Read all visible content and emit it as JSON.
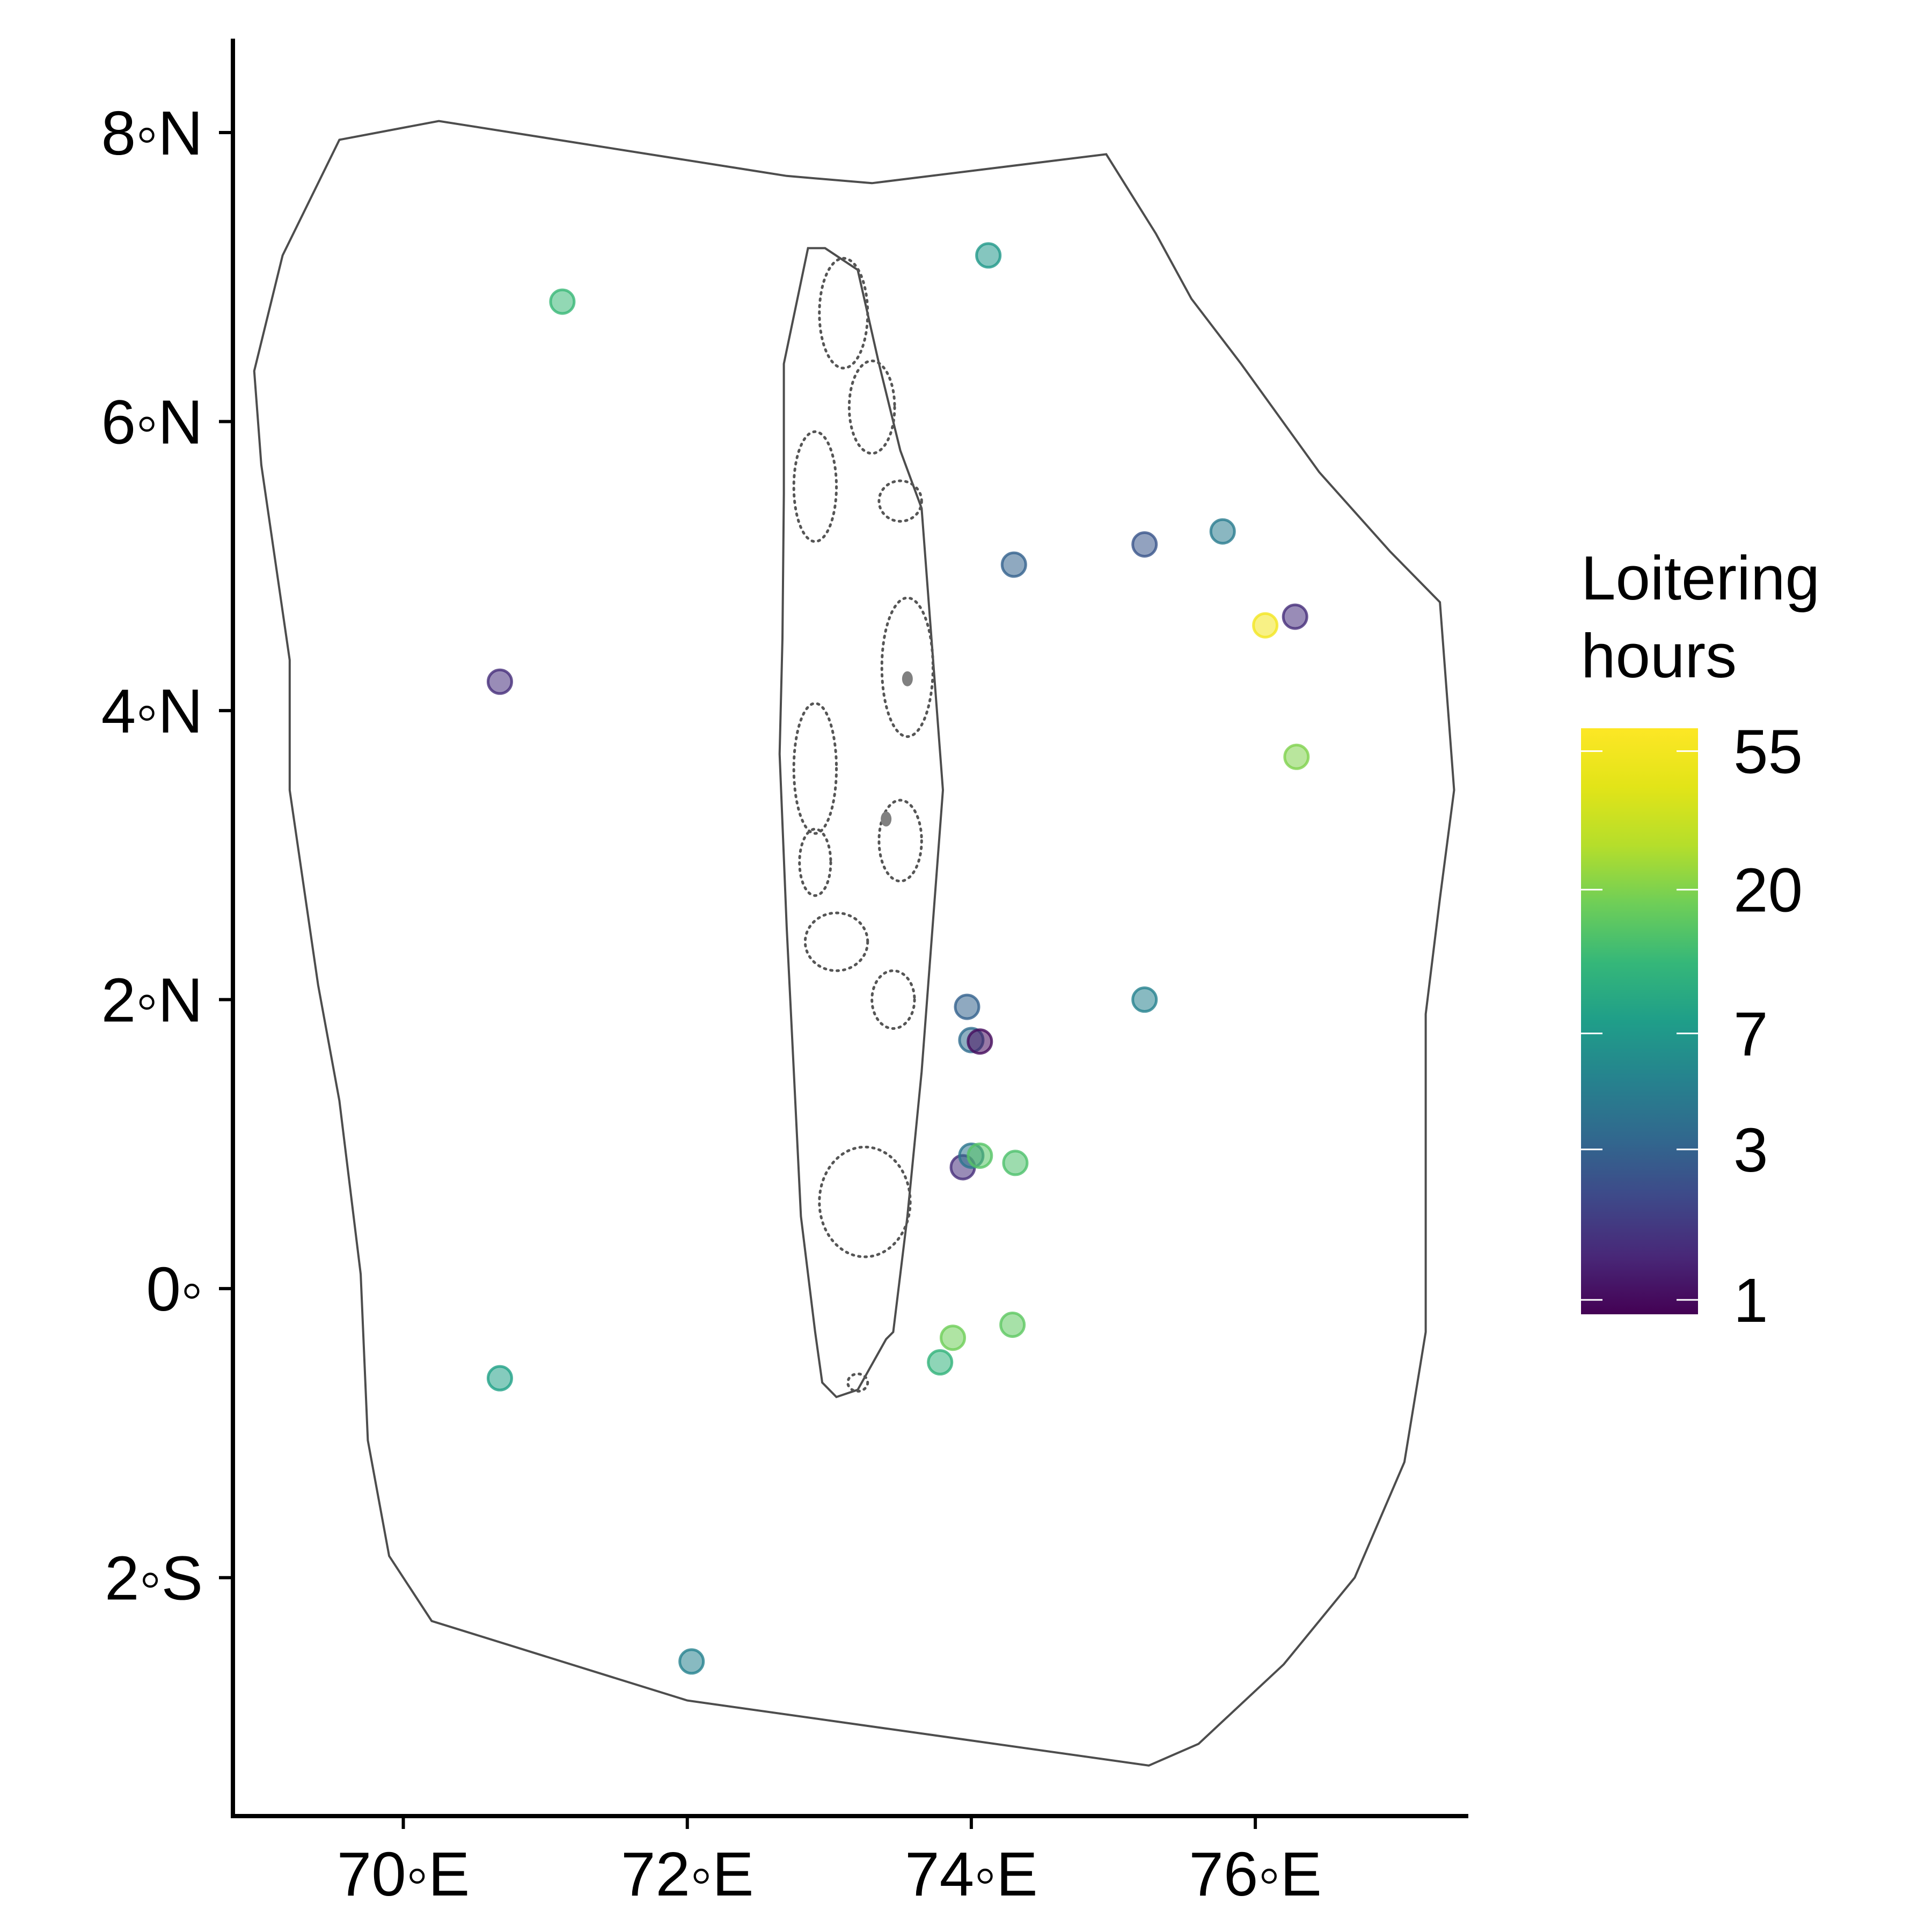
{
  "chart_data": {
    "type": "scatter",
    "title": "",
    "xlabel": "",
    "ylabel": "",
    "xlim": [
      68.8,
      77.5
    ],
    "ylim": [
      -3.65,
      8.65
    ],
    "x_ticks": [
      {
        "value": 70,
        "label": "70◦E"
      },
      {
        "value": 72,
        "label": "72◦E"
      },
      {
        "value": 74,
        "label": "74◦E"
      },
      {
        "value": 76,
        "label": "76◦E"
      }
    ],
    "y_ticks": [
      {
        "value": 8,
        "label": "8◦N"
      },
      {
        "value": 6,
        "label": "6◦N"
      },
      {
        "value": 4,
        "label": "4◦N"
      },
      {
        "value": 2,
        "label": "2◦N"
      },
      {
        "value": 0,
        "label": "0◦"
      },
      {
        "value": -2,
        "label": "2◦S"
      }
    ],
    "grid": false,
    "legend": {
      "title_lines": [
        "Loitering",
        "hours"
      ],
      "position": "right",
      "scale": "log",
      "range": [
        0.9,
        65
      ],
      "ticks": [
        {
          "value": 55,
          "label": "55"
        },
        {
          "value": 20,
          "label": "20"
        },
        {
          "value": 7,
          "label": "7"
        },
        {
          "value": 3,
          "label": "3"
        },
        {
          "value": 1,
          "label": "1"
        }
      ],
      "colormap": "viridis"
    },
    "boundary_outer": [
      [
        69.55,
        7.95
      ],
      [
        70.25,
        8.08
      ],
      [
        72.7,
        7.7
      ],
      [
        73.3,
        7.65
      ],
      [
        74.95,
        7.85
      ],
      [
        75.3,
        7.3
      ],
      [
        75.55,
        6.85
      ],
      [
        75.9,
        6.4
      ],
      [
        76.45,
        5.65
      ],
      [
        76.95,
        5.1
      ],
      [
        77.3,
        4.75
      ],
      [
        77.35,
        4.1
      ],
      [
        77.4,
        3.45
      ],
      [
        77.3,
        2.7
      ],
      [
        77.2,
        1.9
      ],
      [
        77.2,
        1.0
      ],
      [
        77.2,
        -0.3
      ],
      [
        77.15,
        -0.6
      ],
      [
        77.05,
        -1.2
      ],
      [
        76.7,
        -2.0
      ],
      [
        76.2,
        -2.6
      ],
      [
        75.6,
        -3.15
      ],
      [
        75.25,
        -3.3
      ],
      [
        72.0,
        -2.85
      ],
      [
        70.2,
        -2.3
      ],
      [
        69.9,
        -1.85
      ],
      [
        69.75,
        -1.05
      ],
      [
        69.7,
        0.1
      ],
      [
        69.55,
        1.3
      ],
      [
        69.4,
        2.1
      ],
      [
        69.2,
        3.45
      ],
      [
        69.2,
        4.35
      ],
      [
        69.0,
        5.7
      ],
      [
        68.95,
        6.35
      ],
      [
        69.15,
        7.15
      ]
    ],
    "boundary_inner": [
      [
        72.85,
        7.2
      ],
      [
        72.97,
        7.2
      ],
      [
        73.2,
        7.05
      ],
      [
        73.35,
        6.4
      ],
      [
        73.5,
        5.8
      ],
      [
        73.65,
        5.4
      ],
      [
        73.8,
        3.45
      ],
      [
        73.65,
        1.5
      ],
      [
        73.55,
        0.5
      ],
      [
        73.45,
        -0.3
      ],
      [
        73.4,
        -0.35
      ],
      [
        73.2,
        -0.7
      ],
      [
        73.05,
        -0.75
      ],
      [
        72.95,
        -0.65
      ],
      [
        72.9,
        -0.3
      ],
      [
        72.8,
        0.5
      ],
      [
        72.75,
        1.5
      ],
      [
        72.7,
        2.5
      ],
      [
        72.65,
        3.7
      ],
      [
        72.67,
        4.5
      ],
      [
        72.68,
        5.5
      ],
      [
        72.68,
        6.4
      ]
    ],
    "atoll_rings": [
      {
        "center": [
          73.1,
          6.75
        ],
        "rx": 0.17,
        "ry": 0.38
      },
      {
        "center": [
          73.3,
          6.1
        ],
        "rx": 0.16,
        "ry": 0.32
      },
      {
        "center": [
          72.9,
          5.55
        ],
        "rx": 0.15,
        "ry": 0.38
      },
      {
        "center": [
          73.5,
          5.45
        ],
        "rx": 0.15,
        "ry": 0.14
      },
      {
        "center": [
          73.55,
          4.3
        ],
        "rx": 0.18,
        "ry": 0.48
      },
      {
        "center": [
          72.9,
          3.6
        ],
        "rx": 0.15,
        "ry": 0.45
      },
      {
        "center": [
          73.5,
          3.1
        ],
        "rx": 0.15,
        "ry": 0.28
      },
      {
        "center": [
          72.9,
          2.95
        ],
        "rx": 0.11,
        "ry": 0.23
      },
      {
        "center": [
          73.05,
          2.4
        ],
        "rx": 0.22,
        "ry": 0.2
      },
      {
        "center": [
          73.45,
          2.0
        ],
        "rx": 0.15,
        "ry": 0.2
      },
      {
        "center": [
          73.25,
          0.6
        ],
        "rx": 0.32,
        "ry": 0.38
      },
      {
        "center": [
          73.2,
          -0.65
        ],
        "rx": 0.07,
        "ry": 0.06
      }
    ],
    "islands": [
      [
        73.55,
        4.22
      ],
      [
        73.4,
        3.25
      ]
    ],
    "points": [
      {
        "lon": 71.12,
        "lat": 6.83,
        "hours": 12
      },
      {
        "lon": 74.12,
        "lat": 7.15,
        "hours": 7
      },
      {
        "lon": 70.68,
        "lat": 4.2,
        "hours": 1.5
      },
      {
        "lon": 74.3,
        "lat": 5.01,
        "hours": 3
      },
      {
        "lon": 75.22,
        "lat": 5.15,
        "hours": 2.5
      },
      {
        "lon": 75.77,
        "lat": 5.24,
        "hours": 4.5
      },
      {
        "lon": 76.07,
        "lat": 4.59,
        "hours": 55
      },
      {
        "lon": 76.28,
        "lat": 4.65,
        "hours": 1.5
      },
      {
        "lon": 76.29,
        "lat": 3.68,
        "hours": 20
      },
      {
        "lon": 73.97,
        "lat": 1.95,
        "hours": 3
      },
      {
        "lon": 74.0,
        "lat": 1.72,
        "hours": 3.5
      },
      {
        "lon": 74.06,
        "lat": 1.71,
        "hours": 1
      },
      {
        "lon": 75.22,
        "lat": 2.0,
        "hours": 5
      },
      {
        "lon": 73.94,
        "lat": 0.84,
        "hours": 1.5
      },
      {
        "lon": 74.0,
        "lat": 0.92,
        "hours": 4
      },
      {
        "lon": 74.06,
        "lat": 0.92,
        "hours": 15
      },
      {
        "lon": 74.31,
        "lat": 0.87,
        "hours": 14
      },
      {
        "lon": 73.87,
        "lat": -0.34,
        "hours": 18
      },
      {
        "lon": 74.29,
        "lat": -0.25,
        "hours": 16
      },
      {
        "lon": 73.78,
        "lat": -0.51,
        "hours": 11
      },
      {
        "lon": 70.68,
        "lat": -0.62,
        "hours": 8
      },
      {
        "lon": 72.03,
        "lat": -2.58,
        "hours": 5
      }
    ]
  }
}
